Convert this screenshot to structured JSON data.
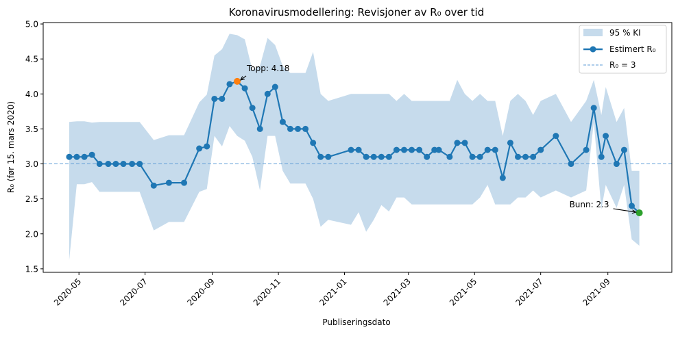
{
  "chart_data": {
    "type": "line",
    "title": "Koronavirusmodellering: Revisjoner av R₀ over tid",
    "xlabel": "Publiseringsdato",
    "ylabel": "R₀ (før 15. mars 2020)",
    "ylim": [
      1.45,
      5.02
    ],
    "yticks": [
      1.5,
      2.0,
      2.5,
      3.0,
      3.5,
      4.0,
      4.5,
      5.0
    ],
    "ytick_labels": [
      "1.5",
      "2.0",
      "2.5",
      "3.0",
      "3.5",
      "4.0",
      "4.5",
      "5.0"
    ],
    "xtick_labels": [
      "2020-05",
      "2020-07",
      "2020-09",
      "2020-11",
      "2021-01",
      "2021-03",
      "2021-05",
      "2021-07",
      "2021-09"
    ],
    "xlim": [
      "2020-03-29",
      "2021-10-30"
    ],
    "grid": false,
    "legend_position": "upper right",
    "legend": [
      {
        "label": "95 % KI",
        "kind": "area"
      },
      {
        "label": "Estimert R₀",
        "kind": "line-marker"
      },
      {
        "label": "R₀ = 3",
        "kind": "dashed"
      }
    ],
    "reference_line": {
      "label": "R₀ = 3",
      "y": 3.0,
      "style": "dashed"
    },
    "series": [
      {
        "name": "Estimert R₀",
        "x": [
          "2020-04-22",
          "2020-04-29",
          "2020-05-06",
          "2020-05-13",
          "2020-05-20",
          "2020-05-28",
          "2020-06-04",
          "2020-06-11",
          "2020-06-19",
          "2020-06-26",
          "2020-07-09",
          "2020-07-23",
          "2020-08-06",
          "2020-08-20",
          "2020-08-27",
          "2020-09-03",
          "2020-09-10",
          "2020-09-17",
          "2020-09-24",
          "2020-10-01",
          "2020-10-08",
          "2020-10-15",
          "2020-10-22",
          "2020-10-29",
          "2020-11-05",
          "2020-11-12",
          "2020-11-19",
          "2020-11-26",
          "2020-12-03",
          "2020-12-10",
          "2020-12-17",
          "2021-01-07",
          "2021-01-14",
          "2021-01-21",
          "2021-01-28",
          "2021-02-04",
          "2021-02-11",
          "2021-02-18",
          "2021-02-25",
          "2021-03-04",
          "2021-03-11",
          "2021-03-18",
          "2021-03-25",
          "2021-03-29",
          "2021-04-08",
          "2021-04-15",
          "2021-04-22",
          "2021-04-29",
          "2021-05-06",
          "2021-05-13",
          "2021-05-20",
          "2021-05-27",
          "2021-06-03",
          "2021-06-10",
          "2021-06-17",
          "2021-06-24",
          "2021-07-01",
          "2021-07-15",
          "2021-07-29",
          "2021-08-12",
          "2021-08-19",
          "2021-08-26",
          "2021-08-30",
          "2021-09-09",
          "2021-09-16",
          "2021-09-23",
          "2021-09-30"
        ],
        "values": [
          3.1,
          3.1,
          3.1,
          3.13,
          3.0,
          3.0,
          3.0,
          3.0,
          3.0,
          3.0,
          2.69,
          2.73,
          2.73,
          3.22,
          3.25,
          3.93,
          3.93,
          4.14,
          4.18,
          4.08,
          3.8,
          3.5,
          4.0,
          4.1,
          3.6,
          3.5,
          3.5,
          3.5,
          3.3,
          3.1,
          3.1,
          3.2,
          3.2,
          3.1,
          3.1,
          3.1,
          3.1,
          3.2,
          3.2,
          3.2,
          3.2,
          3.1,
          3.2,
          3.2,
          3.1,
          3.3,
          3.3,
          3.1,
          3.1,
          3.2,
          3.2,
          2.8,
          3.3,
          3.1,
          3.1,
          3.1,
          3.2,
          3.4,
          3.0,
          3.2,
          3.8,
          3.1,
          3.4,
          3.0,
          3.2,
          2.4,
          2.3
        ]
      },
      {
        "name": "95 % KI",
        "upper": [
          3.6,
          3.61,
          3.61,
          3.59,
          3.6,
          3.6,
          3.6,
          3.6,
          3.6,
          3.6,
          3.34,
          3.41,
          3.41,
          3.88,
          3.99,
          4.55,
          4.64,
          4.86,
          4.84,
          4.78,
          4.34,
          4.4,
          4.8,
          4.7,
          4.4,
          4.3,
          4.3,
          4.3,
          4.6,
          4.0,
          3.9,
          4.0,
          4.0,
          4.0,
          4.0,
          4.0,
          4.0,
          3.9,
          4.0,
          3.9,
          3.9,
          3.9,
          3.9,
          3.9,
          3.9,
          4.2,
          4.0,
          3.9,
          4.0,
          3.9,
          3.9,
          3.4,
          3.9,
          4.0,
          3.9,
          3.7,
          3.9,
          4.0,
          3.6,
          3.9,
          4.2,
          3.7,
          4.1,
          3.6,
          3.8,
          2.9,
          2.9
        ],
        "lower": [
          1.62,
          2.71,
          2.71,
          2.74,
          2.6,
          2.6,
          2.6,
          2.6,
          2.6,
          2.6,
          2.05,
          2.17,
          2.17,
          2.6,
          2.64,
          3.4,
          3.25,
          3.54,
          3.4,
          3.33,
          3.1,
          2.62,
          3.4,
          3.4,
          2.9,
          2.72,
          2.72,
          2.72,
          2.5,
          2.1,
          2.2,
          2.13,
          2.31,
          2.03,
          2.2,
          2.41,
          2.32,
          2.52,
          2.52,
          2.42,
          2.42,
          2.42,
          2.42,
          2.42,
          2.42,
          2.42,
          2.42,
          2.42,
          2.52,
          2.7,
          2.42,
          2.42,
          2.42,
          2.52,
          2.52,
          2.62,
          2.52,
          2.62,
          2.52,
          2.62,
          3.6,
          2.35,
          2.7,
          2.37,
          2.7,
          1.92,
          1.83
        ]
      }
    ],
    "annotations": [
      {
        "text": "Topp: 4.18",
        "x": "2020-09-24",
        "y": 4.18,
        "marker_color": "#ff7f0e"
      },
      {
        "text": "Bunn: 2.3",
        "x": "2021-09-30",
        "y": 2.3,
        "marker_color": "#2ca02c"
      }
    ],
    "colors": {
      "line": "#1f77b4",
      "band": "#c6dbec",
      "ref_line": "#5b9bd5",
      "peak": "#ff7f0e",
      "trough": "#2ca02c"
    }
  }
}
